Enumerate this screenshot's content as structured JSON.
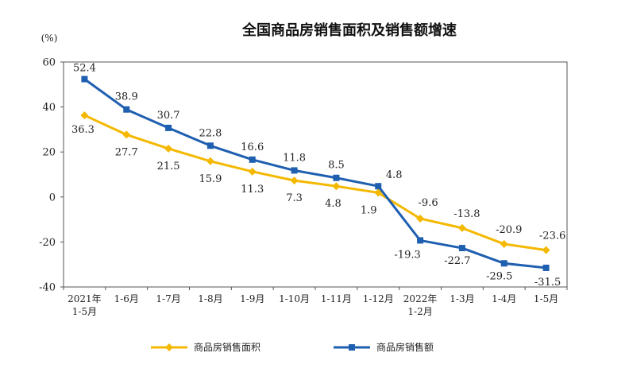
{
  "chart_data": {
    "type": "line",
    "title": "全国商品房销售面积及销售额增速",
    "unit_label": "(%)",
    "ylim": [
      -40,
      60
    ],
    "yticks": [
      60,
      40,
      20,
      0,
      -20,
      -40
    ],
    "categories": [
      [
        "2021年",
        "1-5月"
      ],
      [
        "1-6月"
      ],
      [
        "1-7月"
      ],
      [
        "1-8月"
      ],
      [
        "1-9月"
      ],
      [
        "1-10月"
      ],
      [
        "1-11月"
      ],
      [
        "1-12月"
      ],
      [
        "2022年",
        "1-2月"
      ],
      [
        "1-3月"
      ],
      [
        "1-4月"
      ],
      [
        "1-5月"
      ]
    ],
    "series": [
      {
        "name": "商品房销售面积",
        "color": "#F5B800",
        "marker": "diamond",
        "values": [
          36.3,
          27.7,
          21.5,
          15.9,
          11.3,
          7.3,
          4.8,
          1.9,
          -9.6,
          -13.8,
          -20.9,
          -23.6
        ],
        "labels": [
          "36.3",
          "27.7",
          "21.5",
          "15.9",
          "11.3",
          "7.3",
          "4.8",
          "1.9",
          "-9.6",
          "-13.8",
          "-20.9",
          "-23.6"
        ]
      },
      {
        "name": "商品房销售额",
        "color": "#1F5FB0",
        "marker": "square",
        "values": [
          52.4,
          38.9,
          30.7,
          22.8,
          16.6,
          11.8,
          8.5,
          4.8,
          -19.3,
          -22.7,
          -29.5,
          -31.5
        ],
        "labels": [
          "52.4",
          "38.9",
          "30.7",
          "22.8",
          "16.6",
          "11.8",
          "8.5",
          "4.8",
          "-19.3",
          "-22.7",
          "-29.5",
          "-31.5"
        ]
      }
    ],
    "legend": "bottom"
  }
}
